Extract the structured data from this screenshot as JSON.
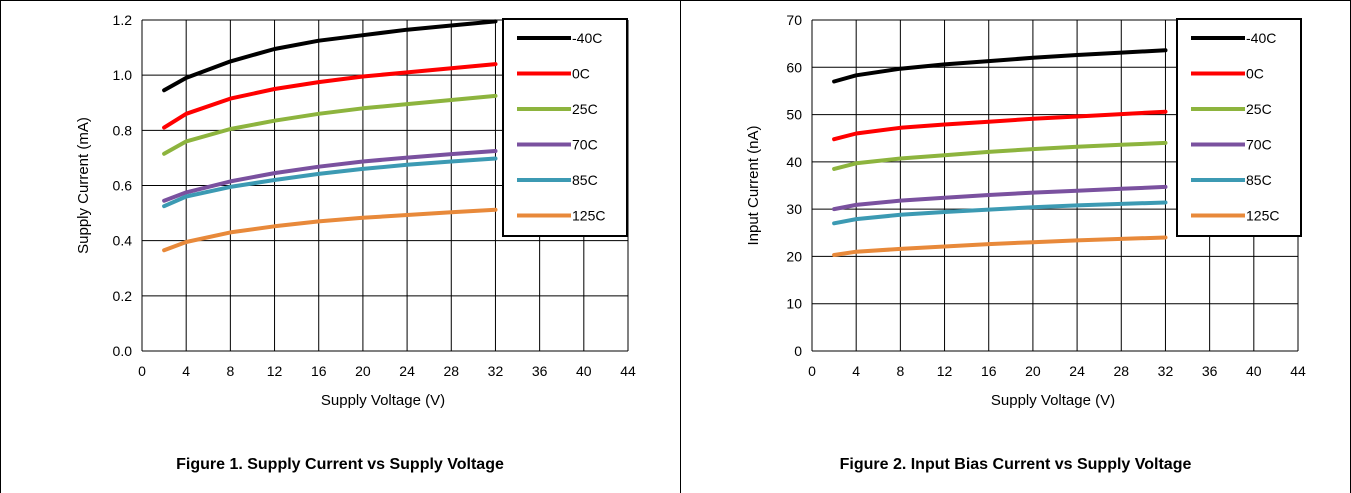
{
  "figures": [
    {
      "caption": "Figure 1. Supply Current vs Supply Voltage"
    },
    {
      "caption": "Figure 2. Input Bias Current vs Supply Voltage"
    }
  ],
  "chart_data": [
    {
      "type": "line",
      "xlabel": "Supply Voltage (V)",
      "ylabel": "Supply Current  (mA)",
      "xlim": [
        0,
        44
      ],
      "ylim": [
        0,
        1.2
      ],
      "xticks": [
        0,
        4,
        8,
        12,
        16,
        20,
        24,
        28,
        32,
        36,
        40,
        44
      ],
      "yticks": [
        0,
        0.2,
        0.4,
        0.6,
        0.8,
        1.0,
        1.2
      ],
      "ytick_labels": [
        "0.0",
        "0.2",
        "0.4",
        "0.6",
        "0.8",
        "1.0",
        "1.2"
      ],
      "grid": true,
      "legend": "top-right",
      "x": [
        2,
        4,
        8,
        12,
        16,
        20,
        24,
        28,
        32
      ],
      "series": [
        {
          "name": "-40C",
          "color": "#000000",
          "values": [
            0.945,
            0.99,
            1.05,
            1.095,
            1.125,
            1.145,
            1.165,
            1.18,
            1.195
          ]
        },
        {
          "name": "0C",
          "color": "#ff0000",
          "values": [
            0.81,
            0.86,
            0.915,
            0.95,
            0.975,
            0.995,
            1.01,
            1.025,
            1.04
          ]
        },
        {
          "name": "25C",
          "color": "#8db43e",
          "values": [
            0.715,
            0.76,
            0.805,
            0.835,
            0.86,
            0.88,
            0.895,
            0.91,
            0.925
          ]
        },
        {
          "name": "70C",
          "color": "#7a519f",
          "values": [
            0.545,
            0.575,
            0.615,
            0.645,
            0.668,
            0.687,
            0.701,
            0.714,
            0.725
          ]
        },
        {
          "name": "85C",
          "color": "#3c9ab3",
          "values": [
            0.525,
            0.56,
            0.595,
            0.62,
            0.642,
            0.66,
            0.675,
            0.687,
            0.698
          ]
        },
        {
          "name": "125C",
          "color": "#e8893a",
          "values": [
            0.365,
            0.395,
            0.43,
            0.452,
            0.47,
            0.483,
            0.493,
            0.503,
            0.512
          ]
        }
      ]
    },
    {
      "type": "line",
      "xlabel": "Supply Voltage (V)",
      "ylabel": "Input Current  (nA)",
      "xlim": [
        0,
        44
      ],
      "ylim": [
        0,
        70
      ],
      "xticks": [
        0,
        4,
        8,
        12,
        16,
        20,
        24,
        28,
        32,
        36,
        40,
        44
      ],
      "yticks": [
        0,
        10,
        20,
        30,
        40,
        50,
        60,
        70
      ],
      "ytick_labels": [
        "0",
        "10",
        "20",
        "30",
        "40",
        "50",
        "60",
        "70"
      ],
      "grid": true,
      "legend": "top-right",
      "x": [
        2,
        4,
        8,
        12,
        16,
        20,
        24,
        28,
        32
      ],
      "series": [
        {
          "name": "-40C",
          "color": "#000000",
          "values": [
            57.0,
            58.3,
            59.7,
            60.6,
            61.3,
            62.0,
            62.6,
            63.1,
            63.6
          ]
        },
        {
          "name": "0C",
          "color": "#ff0000",
          "values": [
            44.8,
            46.0,
            47.2,
            47.9,
            48.5,
            49.1,
            49.6,
            50.1,
            50.6
          ]
        },
        {
          "name": "25C",
          "color": "#8db43e",
          "values": [
            38.5,
            39.7,
            40.7,
            41.4,
            42.1,
            42.7,
            43.2,
            43.6,
            44.0
          ]
        },
        {
          "name": "70C",
          "color": "#7a519f",
          "values": [
            30.0,
            30.9,
            31.8,
            32.4,
            33.0,
            33.5,
            33.9,
            34.3,
            34.7
          ]
        },
        {
          "name": "85C",
          "color": "#3c9ab3",
          "values": [
            27.0,
            27.9,
            28.8,
            29.4,
            29.9,
            30.4,
            30.8,
            31.1,
            31.4
          ]
        },
        {
          "name": "125C",
          "color": "#e8893a",
          "values": [
            20.3,
            21.0,
            21.6,
            22.1,
            22.6,
            23.0,
            23.4,
            23.7,
            24.0
          ]
        }
      ]
    }
  ]
}
